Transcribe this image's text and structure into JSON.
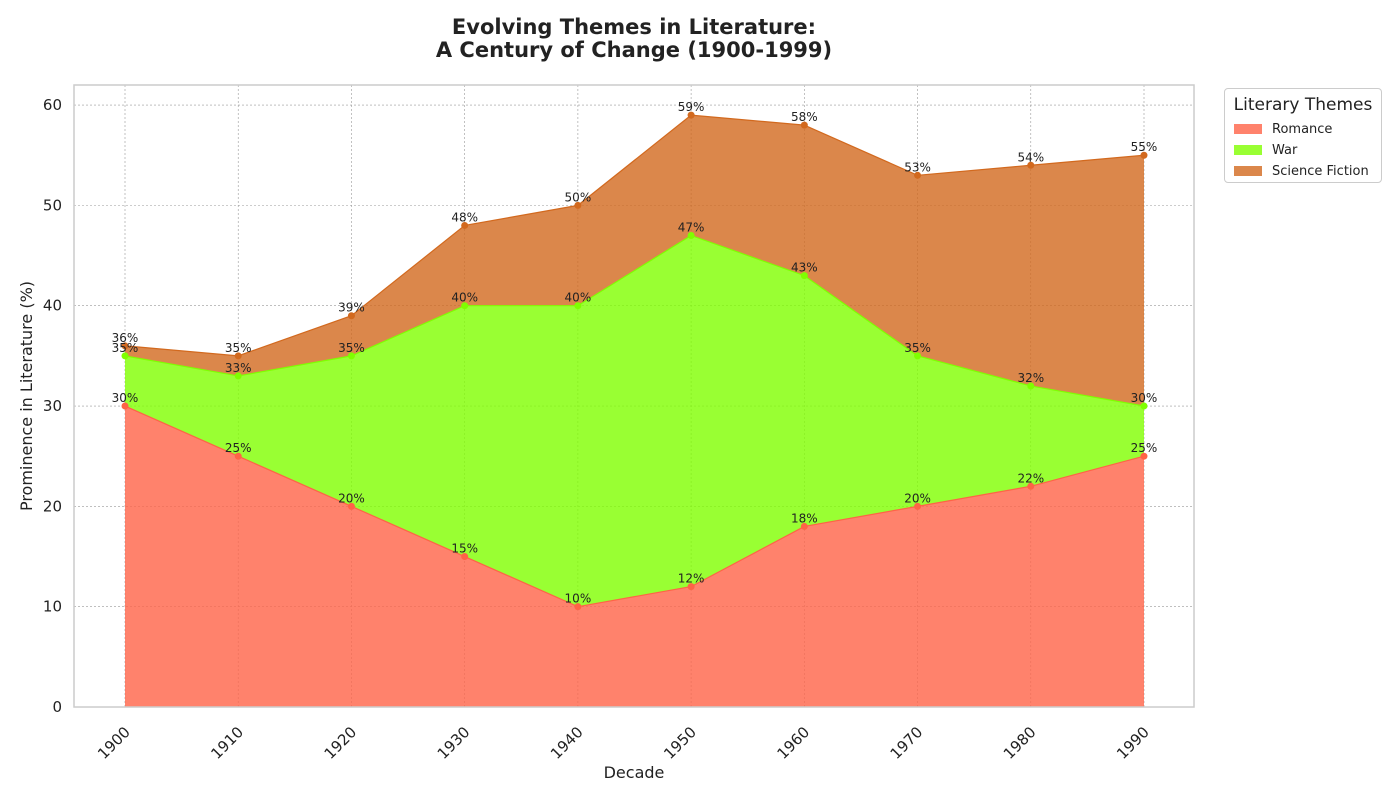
{
  "chart_data": {
    "type": "area",
    "stacked": true,
    "title_line1": "Evolving Themes in Literature:",
    "title_line2": "A Century of Change (1900-1999)",
    "xlabel": "Decade",
    "ylabel": "Prominence in Literature (%)",
    "x": [
      "1900",
      "1910",
      "1920",
      "1930",
      "1940",
      "1950",
      "1960",
      "1970",
      "1980",
      "1990"
    ],
    "ylim": [
      0,
      62
    ],
    "yticks": [
      0,
      10,
      20,
      30,
      40,
      50,
      60
    ],
    "grid": true,
    "legend_placement": "outside upper right",
    "legend_title": "Literary Themes",
    "series": [
      {
        "name": "Romance",
        "color": "#ff6347",
        "values": [
          30,
          25,
          20,
          15,
          10,
          12,
          18,
          20,
          22,
          25
        ]
      },
      {
        "name": "War",
        "color": "#7fff00",
        "values": [
          5,
          8,
          15,
          25,
          30,
          35,
          25,
          15,
          10,
          5
        ]
      },
      {
        "name": "Science Fiction",
        "color": "#d2691e",
        "values": [
          1,
          2,
          4,
          8,
          10,
          12,
          15,
          18,
          22,
          25
        ]
      }
    ],
    "cumulative_labels": [
      [
        "30%",
        "25%",
        "20%",
        "15%",
        "10%",
        "12%",
        "18%",
        "20%",
        "22%",
        "25%"
      ],
      [
        "35%",
        "33%",
        "35%",
        "40%",
        "40%",
        "47%",
        "43%",
        "35%",
        "32%",
        "30%"
      ],
      [
        "36%",
        "35%",
        "39%",
        "48%",
        "50%",
        "59%",
        "58%",
        "53%",
        "54%",
        "55%"
      ]
    ]
  }
}
